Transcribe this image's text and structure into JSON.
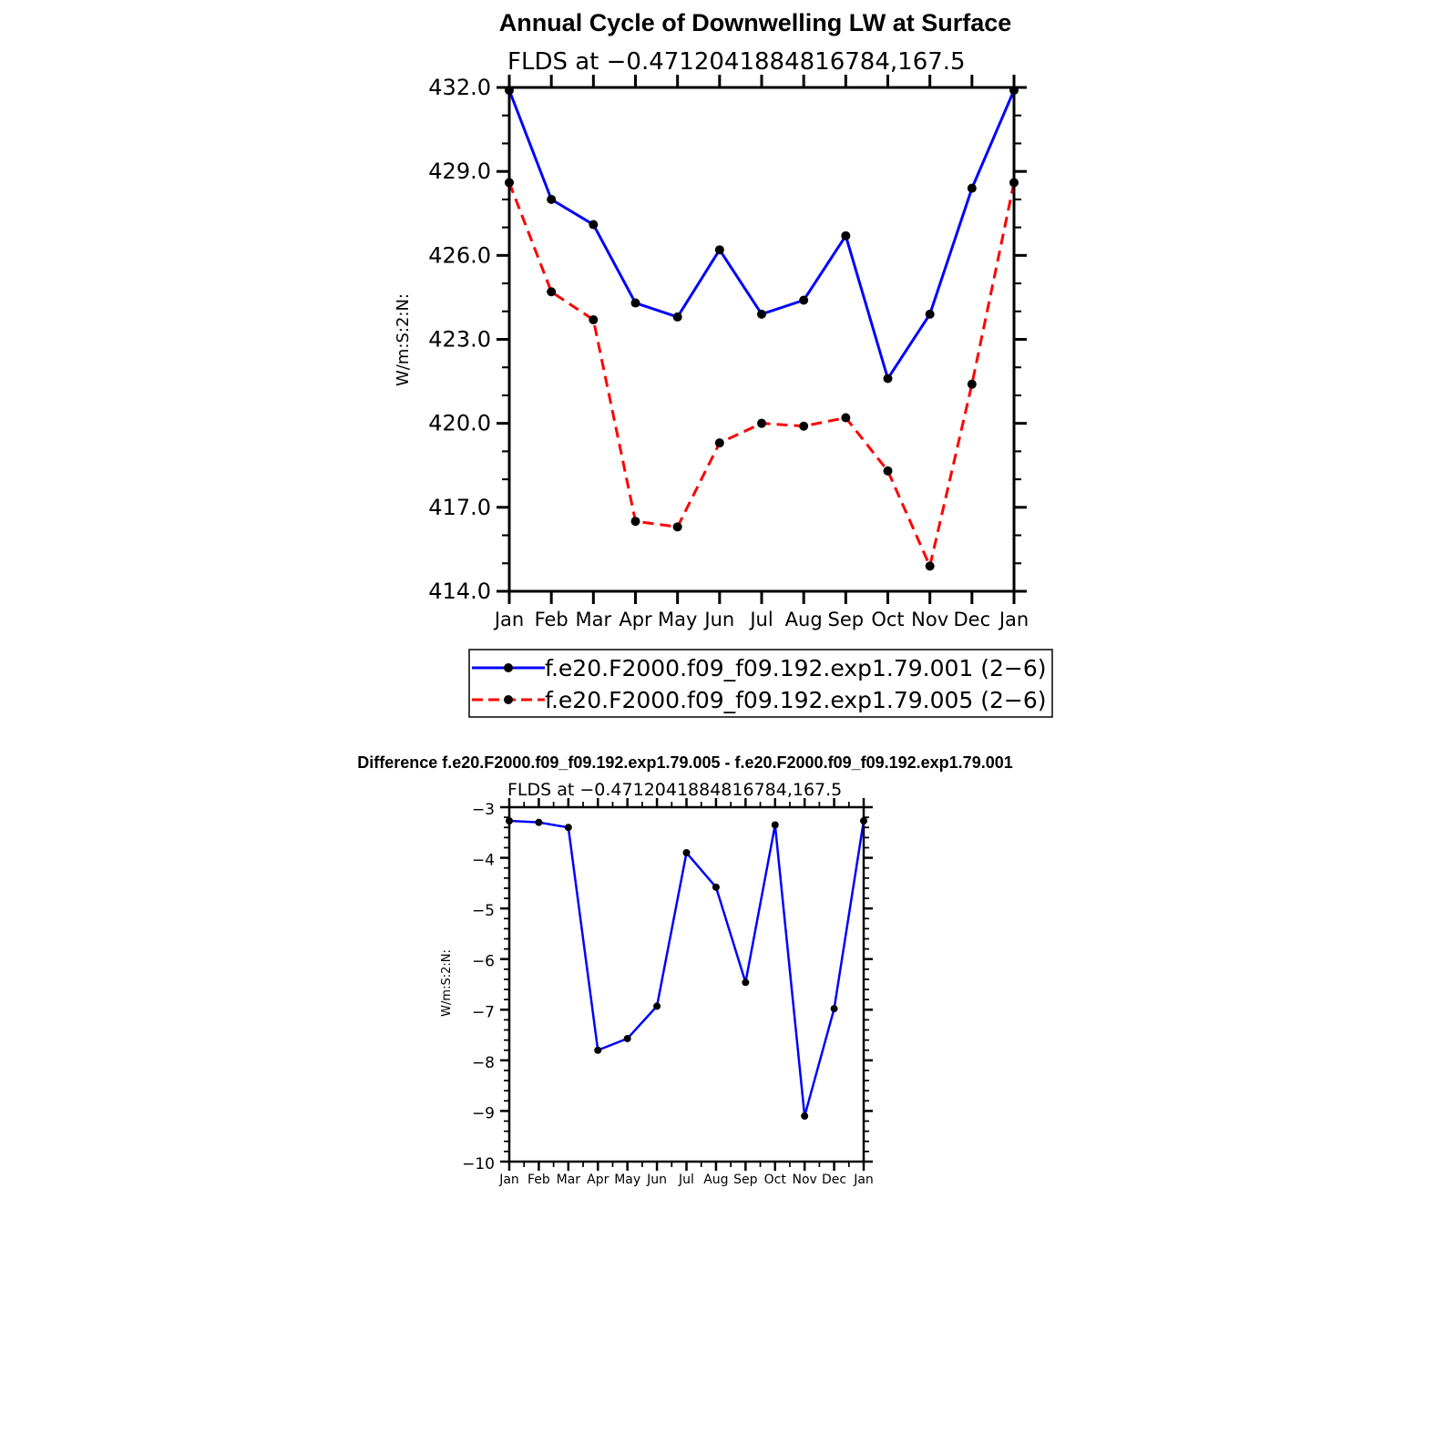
{
  "chart_data": [
    {
      "type": "line",
      "title": "Annual Cycle of Downwelling LW at Surface",
      "subtitle": "FLDS at −0.4712041884816784,167.5",
      "ylabel": "W/m:S:2:N:",
      "ylim": [
        414.0,
        432.0
      ],
      "yticks": [
        "414.0",
        "417.0",
        "420.0",
        "423.0",
        "426.0",
        "429.0",
        "432.0"
      ],
      "categories": [
        "Jan",
        "Feb",
        "Mar",
        "Apr",
        "May",
        "Jun",
        "Jul",
        "Aug",
        "Sep",
        "Oct",
        "Nov",
        "Dec",
        "Jan"
      ],
      "legend_placement": "bottom",
      "series": [
        {
          "name": "f.e20.F2000.f09_f09.192.exp1.79.001 (2−6)",
          "color": "#0000ff",
          "dash": "solid",
          "values": [
            431.9,
            428.0,
            427.1,
            424.3,
            423.8,
            426.2,
            423.9,
            424.4,
            426.7,
            421.6,
            423.9,
            428.4,
            431.9
          ]
        },
        {
          "name": "f.e20.F2000.f09_f09.192.exp1.79.005 (2−6)",
          "color": "#ff0000",
          "dash": "dashed",
          "values": [
            428.6,
            424.7,
            423.7,
            416.5,
            416.3,
            419.3,
            420.0,
            419.9,
            420.2,
            418.3,
            414.9,
            421.4,
            428.6
          ]
        }
      ]
    },
    {
      "type": "line",
      "title": "Difference f.e20.F2000.f09_f09.192.exp1.79.005 - f.e20.F2000.f09_f09.192.exp1.79.001",
      "subtitle": "FLDS at −0.4712041884816784,167.5",
      "ylabel": "W/m:S:2:N:",
      "ylim": [
        -10,
        -3
      ],
      "yticks": [
        "−10",
        "−9",
        "−8",
        "−7",
        "−6",
        "−5",
        "−4",
        "−3"
      ],
      "categories": [
        "Jan",
        "Feb",
        "Mar",
        "Apr",
        "May",
        "Jun",
        "Jul",
        "Aug",
        "Sep",
        "Oct",
        "Nov",
        "Dec",
        "Jan"
      ],
      "series": [
        {
          "color": "#0000ff",
          "dash": "solid",
          "values": [
            -3.27,
            -3.3,
            -3.4,
            -7.8,
            -7.57,
            -6.93,
            -3.9,
            -4.58,
            -6.46,
            -3.35,
            -9.1,
            -6.98,
            -3.27
          ]
        }
      ]
    }
  ]
}
